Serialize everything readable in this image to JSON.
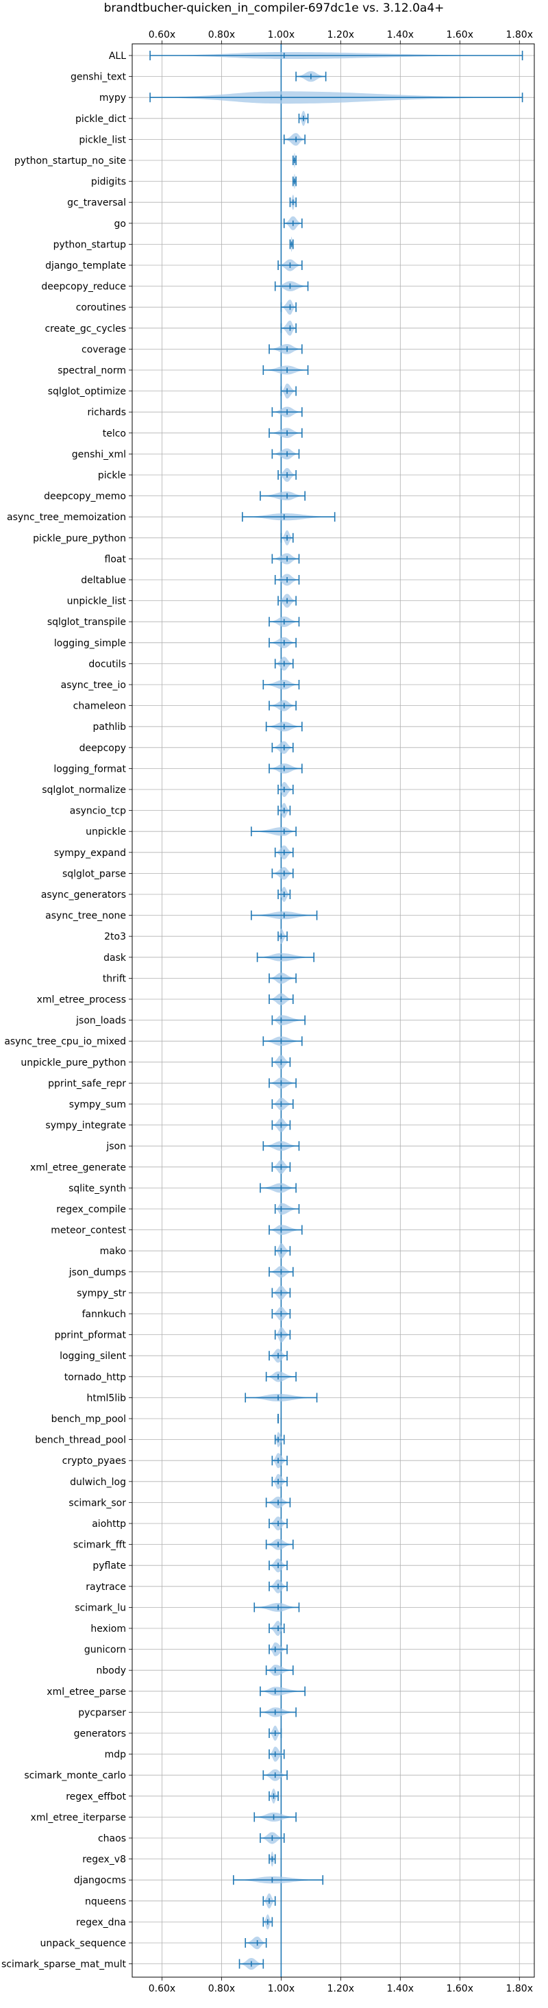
{
  "chart_data": {
    "type": "violin",
    "title": "brandtbucher-quicken_in_compiler-697dc1e vs. 3.12.0a4+",
    "xlabel": "",
    "ylabel": "",
    "xlim": [
      0.5,
      1.85
    ],
    "xticks": [
      "0.60x",
      "0.80x",
      "1.00x",
      "1.20x",
      "1.40x",
      "1.60x",
      "1.80x"
    ],
    "xtick_values": [
      0.6,
      0.8,
      1.0,
      1.2,
      1.4,
      1.6,
      1.8
    ],
    "reference_line": 1.0,
    "grid": true,
    "color": "#1f77b4",
    "fill_color": "#a6c8e8",
    "benchmarks": [
      {
        "name": "ALL",
        "min": 0.56,
        "max": 1.81,
        "mean": 1.01
      },
      {
        "name": "genshi_text",
        "min": 1.05,
        "max": 1.15,
        "mean": 1.1
      },
      {
        "name": "mypy",
        "min": 0.56,
        "max": 1.81,
        "mean": 1.0
      },
      {
        "name": "pickle_dict",
        "min": 1.06,
        "max": 1.09,
        "mean": 1.075
      },
      {
        "name": "pickle_list",
        "min": 1.01,
        "max": 1.08,
        "mean": 1.05
      },
      {
        "name": "python_startup_no_site",
        "min": 1.04,
        "max": 1.05,
        "mean": 1.045
      },
      {
        "name": "pidigits",
        "min": 1.04,
        "max": 1.05,
        "mean": 1.045
      },
      {
        "name": "gc_traversal",
        "min": 1.03,
        "max": 1.05,
        "mean": 1.04
      },
      {
        "name": "go",
        "min": 1.01,
        "max": 1.07,
        "mean": 1.04
      },
      {
        "name": "python_startup",
        "min": 1.03,
        "max": 1.04,
        "mean": 1.035
      },
      {
        "name": "django_template",
        "min": 0.99,
        "max": 1.07,
        "mean": 1.03
      },
      {
        "name": "deepcopy_reduce",
        "min": 0.98,
        "max": 1.09,
        "mean": 1.03
      },
      {
        "name": "coroutines",
        "min": 1.0,
        "max": 1.05,
        "mean": 1.03
      },
      {
        "name": "create_gc_cycles",
        "min": 1.0,
        "max": 1.05,
        "mean": 1.03
      },
      {
        "name": "coverage",
        "min": 0.96,
        "max": 1.07,
        "mean": 1.02
      },
      {
        "name": "spectral_norm",
        "min": 0.94,
        "max": 1.09,
        "mean": 1.02
      },
      {
        "name": "sqlglot_optimize",
        "min": 1.0,
        "max": 1.05,
        "mean": 1.02
      },
      {
        "name": "richards",
        "min": 0.97,
        "max": 1.07,
        "mean": 1.02
      },
      {
        "name": "telco",
        "min": 0.96,
        "max": 1.07,
        "mean": 1.02
      },
      {
        "name": "genshi_xml",
        "min": 0.97,
        "max": 1.06,
        "mean": 1.02
      },
      {
        "name": "pickle",
        "min": 0.99,
        "max": 1.05,
        "mean": 1.02
      },
      {
        "name": "deepcopy_memo",
        "min": 0.93,
        "max": 1.08,
        "mean": 1.02
      },
      {
        "name": "async_tree_memoization",
        "min": 0.87,
        "max": 1.18,
        "mean": 1.01
      },
      {
        "name": "pickle_pure_python",
        "min": 1.0,
        "max": 1.04,
        "mean": 1.02
      },
      {
        "name": "float",
        "min": 0.97,
        "max": 1.06,
        "mean": 1.02
      },
      {
        "name": "deltablue",
        "min": 0.98,
        "max": 1.06,
        "mean": 1.02
      },
      {
        "name": "unpickle_list",
        "min": 0.99,
        "max": 1.05,
        "mean": 1.02
      },
      {
        "name": "sqlglot_transpile",
        "min": 0.96,
        "max": 1.06,
        "mean": 1.01
      },
      {
        "name": "logging_simple",
        "min": 0.96,
        "max": 1.05,
        "mean": 1.01
      },
      {
        "name": "docutils",
        "min": 0.98,
        "max": 1.04,
        "mean": 1.01
      },
      {
        "name": "async_tree_io",
        "min": 0.94,
        "max": 1.06,
        "mean": 1.01
      },
      {
        "name": "chameleon",
        "min": 0.96,
        "max": 1.05,
        "mean": 1.01
      },
      {
        "name": "pathlib",
        "min": 0.95,
        "max": 1.07,
        "mean": 1.01
      },
      {
        "name": "deepcopy",
        "min": 0.97,
        "max": 1.04,
        "mean": 1.01
      },
      {
        "name": "logging_format",
        "min": 0.96,
        "max": 1.07,
        "mean": 1.01
      },
      {
        "name": "sqlglot_normalize",
        "min": 0.99,
        "max": 1.04,
        "mean": 1.01
      },
      {
        "name": "asyncio_tcp",
        "min": 0.99,
        "max": 1.03,
        "mean": 1.01
      },
      {
        "name": "unpickle",
        "min": 0.9,
        "max": 1.05,
        "mean": 1.01
      },
      {
        "name": "sympy_expand",
        "min": 0.98,
        "max": 1.04,
        "mean": 1.01
      },
      {
        "name": "sqlglot_parse",
        "min": 0.97,
        "max": 1.04,
        "mean": 1.01
      },
      {
        "name": "async_generators",
        "min": 0.99,
        "max": 1.03,
        "mean": 1.01
      },
      {
        "name": "async_tree_none",
        "min": 0.9,
        "max": 1.12,
        "mean": 1.01
      },
      {
        "name": "2to3",
        "min": 0.99,
        "max": 1.02,
        "mean": 1.0
      },
      {
        "name": "dask",
        "min": 0.92,
        "max": 1.11,
        "mean": 1.0
      },
      {
        "name": "thrift",
        "min": 0.96,
        "max": 1.05,
        "mean": 1.0
      },
      {
        "name": "xml_etree_process",
        "min": 0.96,
        "max": 1.04,
        "mean": 1.0
      },
      {
        "name": "json_loads",
        "min": 0.97,
        "max": 1.08,
        "mean": 1.0
      },
      {
        "name": "async_tree_cpu_io_mixed",
        "min": 0.94,
        "max": 1.07,
        "mean": 1.0
      },
      {
        "name": "unpickle_pure_python",
        "min": 0.97,
        "max": 1.03,
        "mean": 1.0
      },
      {
        "name": "pprint_safe_repr",
        "min": 0.96,
        "max": 1.05,
        "mean": 1.0
      },
      {
        "name": "sympy_sum",
        "min": 0.97,
        "max": 1.04,
        "mean": 1.0
      },
      {
        "name": "sympy_integrate",
        "min": 0.97,
        "max": 1.03,
        "mean": 1.0
      },
      {
        "name": "json",
        "min": 0.94,
        "max": 1.06,
        "mean": 1.0
      },
      {
        "name": "xml_etree_generate",
        "min": 0.97,
        "max": 1.03,
        "mean": 1.0
      },
      {
        "name": "sqlite_synth",
        "min": 0.93,
        "max": 1.05,
        "mean": 1.0
      },
      {
        "name": "regex_compile",
        "min": 0.98,
        "max": 1.06,
        "mean": 1.0
      },
      {
        "name": "meteor_contest",
        "min": 0.96,
        "max": 1.07,
        "mean": 1.0
      },
      {
        "name": "mako",
        "min": 0.98,
        "max": 1.03,
        "mean": 1.0
      },
      {
        "name": "json_dumps",
        "min": 0.96,
        "max": 1.04,
        "mean": 1.0
      },
      {
        "name": "sympy_str",
        "min": 0.97,
        "max": 1.03,
        "mean": 1.0
      },
      {
        "name": "fannkuch",
        "min": 0.97,
        "max": 1.03,
        "mean": 1.0
      },
      {
        "name": "pprint_pformat",
        "min": 0.98,
        "max": 1.03,
        "mean": 1.0
      },
      {
        "name": "logging_silent",
        "min": 0.96,
        "max": 1.02,
        "mean": 0.99
      },
      {
        "name": "tornado_http",
        "min": 0.95,
        "max": 1.05,
        "mean": 0.99
      },
      {
        "name": "html5lib",
        "min": 0.88,
        "max": 1.12,
        "mean": 0.99
      },
      {
        "name": "bench_mp_pool",
        "min": 0.99,
        "max": 0.99,
        "mean": 0.99
      },
      {
        "name": "bench_thread_pool",
        "min": 0.98,
        "max": 1.01,
        "mean": 0.99
      },
      {
        "name": "crypto_pyaes",
        "min": 0.97,
        "max": 1.02,
        "mean": 0.99
      },
      {
        "name": "dulwich_log",
        "min": 0.97,
        "max": 1.02,
        "mean": 0.99
      },
      {
        "name": "scimark_sor",
        "min": 0.95,
        "max": 1.03,
        "mean": 0.99
      },
      {
        "name": "aiohttp",
        "min": 0.96,
        "max": 1.02,
        "mean": 0.99
      },
      {
        "name": "scimark_fft",
        "min": 0.95,
        "max": 1.04,
        "mean": 0.99
      },
      {
        "name": "pyflate",
        "min": 0.96,
        "max": 1.02,
        "mean": 0.99
      },
      {
        "name": "raytrace",
        "min": 0.96,
        "max": 1.02,
        "mean": 0.99
      },
      {
        "name": "scimark_lu",
        "min": 0.91,
        "max": 1.06,
        "mean": 0.99
      },
      {
        "name": "hexiom",
        "min": 0.96,
        "max": 1.01,
        "mean": 0.99
      },
      {
        "name": "gunicorn",
        "min": 0.96,
        "max": 1.02,
        "mean": 0.98
      },
      {
        "name": "nbody",
        "min": 0.95,
        "max": 1.04,
        "mean": 0.98
      },
      {
        "name": "xml_etree_parse",
        "min": 0.93,
        "max": 1.08,
        "mean": 0.98
      },
      {
        "name": "pycparser",
        "min": 0.93,
        "max": 1.05,
        "mean": 0.98
      },
      {
        "name": "generators",
        "min": 0.96,
        "max": 1.0,
        "mean": 0.98
      },
      {
        "name": "mdp",
        "min": 0.96,
        "max": 1.01,
        "mean": 0.98
      },
      {
        "name": "scimark_monte_carlo",
        "min": 0.94,
        "max": 1.02,
        "mean": 0.98
      },
      {
        "name": "regex_effbot",
        "min": 0.96,
        "max": 0.99,
        "mean": 0.975
      },
      {
        "name": "xml_etree_iterparse",
        "min": 0.91,
        "max": 1.05,
        "mean": 0.975
      },
      {
        "name": "chaos",
        "min": 0.93,
        "max": 1.01,
        "mean": 0.97
      },
      {
        "name": "regex_v8",
        "min": 0.96,
        "max": 0.98,
        "mean": 0.97
      },
      {
        "name": "djangocms",
        "min": 0.84,
        "max": 1.14,
        "mean": 0.97
      },
      {
        "name": "nqueens",
        "min": 0.94,
        "max": 0.98,
        "mean": 0.96
      },
      {
        "name": "regex_dna",
        "min": 0.94,
        "max": 0.97,
        "mean": 0.955
      },
      {
        "name": "unpack_sequence",
        "min": 0.88,
        "max": 0.95,
        "mean": 0.92
      },
      {
        "name": "scimark_sparse_mat_mult",
        "min": 0.86,
        "max": 0.94,
        "mean": 0.9
      }
    ]
  }
}
